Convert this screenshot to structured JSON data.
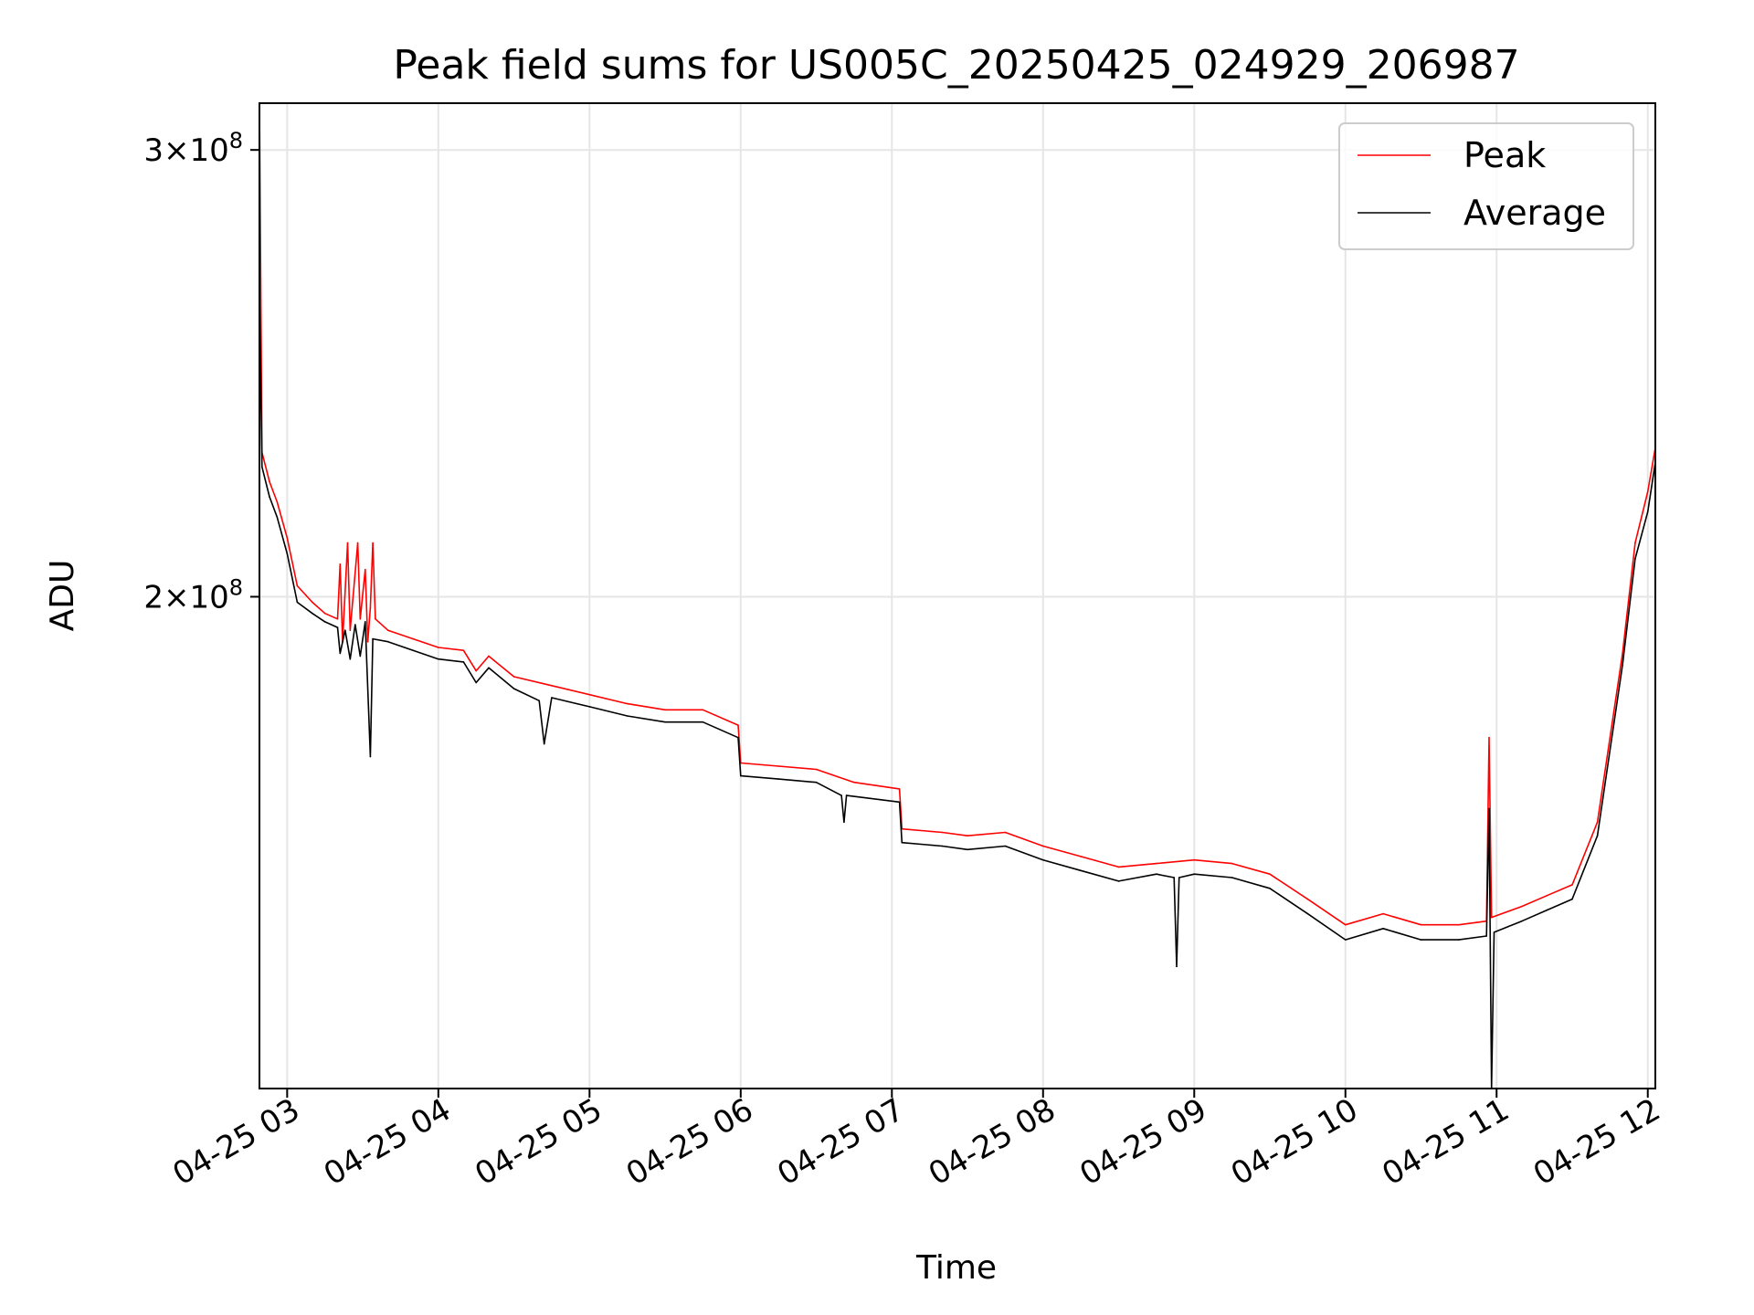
{
  "chart_data": {
    "type": "line",
    "title": "Peak field sums for US005C_20250425_024929_206987",
    "xlabel": "Time",
    "ylabel": "ADU",
    "y_scale": "log",
    "xlim": [
      "2025-04-25 02:49",
      "2025-04-25 12:03"
    ],
    "ylim": [
      128000000,
      313000000
    ],
    "grid": true,
    "legend_position": "top-right",
    "x_ticks": [
      {
        "label": "04-25 03",
        "time": "2025-04-25 03:00"
      },
      {
        "label": "04-25 04",
        "time": "2025-04-25 04:00"
      },
      {
        "label": "04-25 05",
        "time": "2025-04-25 05:00"
      },
      {
        "label": "04-25 06",
        "time": "2025-04-25 06:00"
      },
      {
        "label": "04-25 07",
        "time": "2025-04-25 07:00"
      },
      {
        "label": "04-25 08",
        "time": "2025-04-25 08:00"
      },
      {
        "label": "04-25 09",
        "time": "2025-04-25 09:00"
      },
      {
        "label": "04-25 10",
        "time": "2025-04-25 10:00"
      },
      {
        "label": "04-25 11",
        "time": "2025-04-25 11:00"
      },
      {
        "label": "04-25 12",
        "time": "2025-04-25 12:00"
      }
    ],
    "y_ticks": [
      {
        "mantissa": "2",
        "exponent": "8",
        "value": 200000000
      },
      {
        "mantissa": "3",
        "exponent": "8",
        "value": 300000000
      }
    ],
    "series": [
      {
        "name": "Peak",
        "color": "#ff0000",
        "points": [
          [
            "2025-04-25 02:49",
            313000000
          ],
          [
            "2025-04-25 02:50",
            228000000
          ],
          [
            "2025-04-25 02:53",
            222000000
          ],
          [
            "2025-04-25 02:56",
            218000000
          ],
          [
            "2025-04-25 03:00",
            211000000
          ],
          [
            "2025-04-25 03:04",
            202000000
          ],
          [
            "2025-04-25 03:10",
            199000000
          ],
          [
            "2025-04-25 03:15",
            197000000
          ],
          [
            "2025-04-25 03:20",
            196000000
          ],
          [
            "2025-04-25 03:21",
            206000000
          ],
          [
            "2025-04-25 03:22",
            192000000
          ],
          [
            "2025-04-25 03:24",
            210000000
          ],
          [
            "2025-04-25 03:25",
            194000000
          ],
          [
            "2025-04-25 03:28",
            210000000
          ],
          [
            "2025-04-25 03:29",
            196000000
          ],
          [
            "2025-04-25 03:31",
            205000000
          ],
          [
            "2025-04-25 03:32",
            192000000
          ],
          [
            "2025-04-25 03:33",
            198000000
          ],
          [
            "2025-04-25 03:34",
            210000000
          ],
          [
            "2025-04-25 03:35",
            196000000
          ],
          [
            "2025-04-25 03:40",
            194000000
          ],
          [
            "2025-04-25 03:50",
            192500000
          ],
          [
            "2025-04-25 04:00",
            191000000
          ],
          [
            "2025-04-25 04:10",
            190500000
          ],
          [
            "2025-04-25 04:15",
            187000000
          ],
          [
            "2025-04-25 04:20",
            189500000
          ],
          [
            "2025-04-25 04:30",
            186000000
          ],
          [
            "2025-04-25 04:45",
            184500000
          ],
          [
            "2025-04-25 05:00",
            183000000
          ],
          [
            "2025-04-25 05:15",
            181500000
          ],
          [
            "2025-04-25 05:30",
            180500000
          ],
          [
            "2025-04-25 05:45",
            180500000
          ],
          [
            "2025-04-25 05:59",
            178000000
          ],
          [
            "2025-04-25 06:00",
            172000000
          ],
          [
            "2025-04-25 06:15",
            171500000
          ],
          [
            "2025-04-25 06:30",
            171000000
          ],
          [
            "2025-04-25 06:45",
            169000000
          ],
          [
            "2025-04-25 07:03",
            168000000
          ],
          [
            "2025-04-25 07:04",
            162000000
          ],
          [
            "2025-04-25 07:20",
            161500000
          ],
          [
            "2025-04-25 07:30",
            161000000
          ],
          [
            "2025-04-25 07:45",
            161500000
          ],
          [
            "2025-04-25 08:00",
            159500000
          ],
          [
            "2025-04-25 08:15",
            158000000
          ],
          [
            "2025-04-25 08:30",
            156500000
          ],
          [
            "2025-04-25 08:45",
            157000000
          ],
          [
            "2025-04-25 09:00",
            157500000
          ],
          [
            "2025-04-25 09:15",
            157000000
          ],
          [
            "2025-04-25 09:30",
            155500000
          ],
          [
            "2025-04-25 09:45",
            152000000
          ],
          [
            "2025-04-25 10:00",
            148500000
          ],
          [
            "2025-04-25 10:15",
            150000000
          ],
          [
            "2025-04-25 10:30",
            148500000
          ],
          [
            "2025-04-25 10:45",
            148500000
          ],
          [
            "2025-04-25 10:56",
            149000000
          ],
          [
            "2025-04-25 10:57",
            176000000
          ],
          [
            "2025-04-25 10:58",
            149500000
          ],
          [
            "2025-04-25 11:10",
            151000000
          ],
          [
            "2025-04-25 11:20",
            152500000
          ],
          [
            "2025-04-25 11:30",
            154000000
          ],
          [
            "2025-04-25 11:40",
            163000000
          ],
          [
            "2025-04-25 11:50",
            190000000
          ],
          [
            "2025-04-25 11:55",
            210000000
          ],
          [
            "2025-04-25 12:00",
            220000000
          ],
          [
            "2025-04-25 12:03",
            229000000
          ]
        ]
      },
      {
        "name": "Average",
        "color": "#000000",
        "points": [
          [
            "2025-04-25 02:49",
            264000000
          ],
          [
            "2025-04-25 02:50",
            225000000
          ],
          [
            "2025-04-25 02:53",
            219000000
          ],
          [
            "2025-04-25 02:56",
            215000000
          ],
          [
            "2025-04-25 03:00",
            208000000
          ],
          [
            "2025-04-25 03:04",
            199000000
          ],
          [
            "2025-04-25 03:10",
            197000000
          ],
          [
            "2025-04-25 03:15",
            195500000
          ],
          [
            "2025-04-25 03:20",
            194500000
          ],
          [
            "2025-04-25 03:21",
            190000000
          ],
          [
            "2025-04-25 03:23",
            194000000
          ],
          [
            "2025-04-25 03:25",
            189000000
          ],
          [
            "2025-04-25 03:27",
            195000000
          ],
          [
            "2025-04-25 03:29",
            189500000
          ],
          [
            "2025-04-25 03:31",
            195500000
          ],
          [
            "2025-04-25 03:33",
            173000000
          ],
          [
            "2025-04-25 03:34",
            192500000
          ],
          [
            "2025-04-25 03:40",
            192000000
          ],
          [
            "2025-04-25 03:50",
            190500000
          ],
          [
            "2025-04-25 04:00",
            189000000
          ],
          [
            "2025-04-25 04:10",
            188500000
          ],
          [
            "2025-04-25 04:15",
            185000000
          ],
          [
            "2025-04-25 04:20",
            187500000
          ],
          [
            "2025-04-25 04:30",
            184000000
          ],
          [
            "2025-04-25 04:40",
            182000000
          ],
          [
            "2025-04-25 04:42",
            175000000
          ],
          [
            "2025-04-25 04:45",
            182500000
          ],
          [
            "2025-04-25 05:00",
            181000000
          ],
          [
            "2025-04-25 05:15",
            179500000
          ],
          [
            "2025-04-25 05:30",
            178500000
          ],
          [
            "2025-04-25 05:45",
            178500000
          ],
          [
            "2025-04-25 05:59",
            176000000
          ],
          [
            "2025-04-25 06:00",
            170000000
          ],
          [
            "2025-04-25 06:15",
            169500000
          ],
          [
            "2025-04-25 06:30",
            169000000
          ],
          [
            "2025-04-25 06:40",
            167000000
          ],
          [
            "2025-04-25 06:41",
            163000000
          ],
          [
            "2025-04-25 06:42",
            167000000
          ],
          [
            "2025-04-25 07:03",
            166000000
          ],
          [
            "2025-04-25 07:04",
            160000000
          ],
          [
            "2025-04-25 07:20",
            159500000
          ],
          [
            "2025-04-25 07:30",
            159000000
          ],
          [
            "2025-04-25 07:45",
            159500000
          ],
          [
            "2025-04-25 08:00",
            157500000
          ],
          [
            "2025-04-25 08:15",
            156000000
          ],
          [
            "2025-04-25 08:30",
            154500000
          ],
          [
            "2025-04-25 08:45",
            155500000
          ],
          [
            "2025-04-25 08:52",
            155000000
          ],
          [
            "2025-04-25 08:53",
            143000000
          ],
          [
            "2025-04-25 08:54",
            155000000
          ],
          [
            "2025-04-25 09:00",
            155500000
          ],
          [
            "2025-04-25 09:15",
            155000000
          ],
          [
            "2025-04-25 09:30",
            153500000
          ],
          [
            "2025-04-25 09:45",
            150000000
          ],
          [
            "2025-04-25 10:00",
            146500000
          ],
          [
            "2025-04-25 10:15",
            148000000
          ],
          [
            "2025-04-25 10:30",
            146500000
          ],
          [
            "2025-04-25 10:45",
            146500000
          ],
          [
            "2025-04-25 10:56",
            147000000
          ],
          [
            "2025-04-25 10:57",
            165000000
          ],
          [
            "2025-04-25 10:58",
            128000000
          ],
          [
            "2025-04-25 10:59",
            147500000
          ],
          [
            "2025-04-25 11:10",
            149000000
          ],
          [
            "2025-04-25 11:20",
            150500000
          ],
          [
            "2025-04-25 11:30",
            152000000
          ],
          [
            "2025-04-25 11:40",
            161000000
          ],
          [
            "2025-04-25 11:50",
            188000000
          ],
          [
            "2025-04-25 11:55",
            207000000
          ],
          [
            "2025-04-25 12:00",
            216000000
          ],
          [
            "2025-04-25 12:03",
            226000000
          ]
        ]
      }
    ]
  }
}
